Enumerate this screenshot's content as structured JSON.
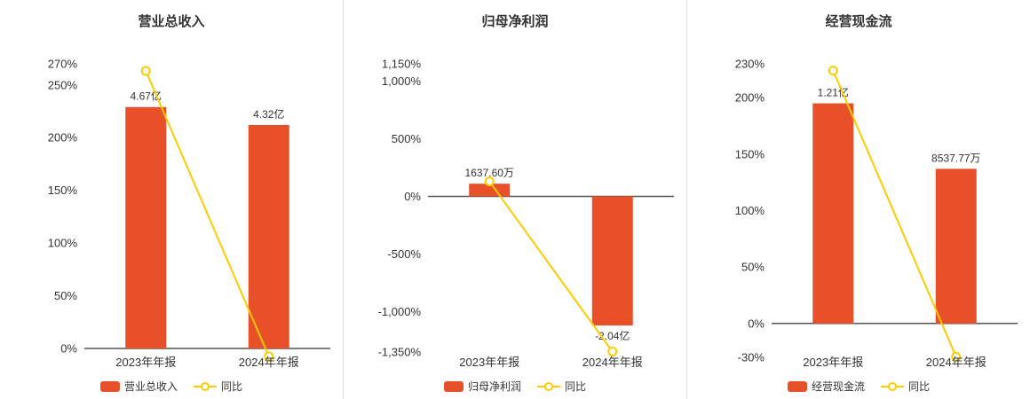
{
  "colors": {
    "bar": "#e8502a",
    "line": "#fccb00",
    "axis": "#555555",
    "text": "#333333",
    "divider": "#dddddd",
    "marker_fill": "#ffffff"
  },
  "chart_data": [
    {
      "type": "bar",
      "title": "营业总收入",
      "categories": [
        "2023年年报",
        "2024年年报"
      ],
      "bar_series": {
        "name": "营业总收入",
        "value_labels": [
          "4.67亿",
          "4.32亿"
        ],
        "axis_pct_values": [
          229,
          212
        ]
      },
      "line_series": {
        "name": "同比",
        "values_pct": [
          263.3,
          -7.49
        ]
      },
      "y_axis": {
        "min": 0,
        "max": 270,
        "ticks": [
          {
            "label": "270%",
            "value": 270
          },
          {
            "label": "250%",
            "value": 250
          },
          {
            "label": "200%",
            "value": 200
          },
          {
            "label": "150%",
            "value": 150
          },
          {
            "label": "100%",
            "value": 100
          },
          {
            "label": "50%",
            "value": 50
          },
          {
            "label": "0%",
            "value": 0
          }
        ]
      },
      "legend_position": "bottom",
      "grid": false
    },
    {
      "type": "bar",
      "title": "归母净利润",
      "categories": [
        "2023年年报",
        "2024年年报"
      ],
      "bar_series": {
        "name": "归母净利润",
        "value_labels": [
          "1637.60万",
          "-2.04亿"
        ],
        "axis_pct_values": [
          110,
          -1120
        ]
      },
      "line_series": {
        "name": "同比",
        "values_pct": [
          130,
          -1345.8
        ]
      },
      "y_axis": {
        "min": -1350,
        "max": 1150,
        "ticks": [
          {
            "label": "1,150%",
            "value": 1150
          },
          {
            "label": "1,000%",
            "value": 1000
          },
          {
            "label": "500%",
            "value": 500
          },
          {
            "label": "0%",
            "value": 0
          },
          {
            "label": "-500%",
            "value": -500
          },
          {
            "label": "-1,000%",
            "value": -1000
          },
          {
            "label": "-1,350%",
            "value": -1350
          }
        ]
      },
      "legend_position": "bottom",
      "grid": false
    },
    {
      "type": "bar",
      "title": "经营现金流",
      "categories": [
        "2023年年报",
        "2024年年报"
      ],
      "bar_series": {
        "name": "经营现金流",
        "value_labels": [
          "1.21亿",
          "8537.77万"
        ],
        "axis_pct_values": [
          195,
          137
        ]
      },
      "line_series": {
        "name": "同比",
        "values_pct": [
          224,
          -29.4
        ]
      },
      "y_axis": {
        "min": -30,
        "max": 230,
        "ticks": [
          {
            "label": "230%",
            "value": 230
          },
          {
            "label": "200%",
            "value": 200
          },
          {
            "label": "150%",
            "value": 150
          },
          {
            "label": "100%",
            "value": 100
          },
          {
            "label": "50%",
            "value": 50
          },
          {
            "label": "0%",
            "value": 0
          },
          {
            "label": "-30%",
            "value": -30
          }
        ]
      },
      "legend_position": "bottom",
      "grid": false
    }
  ]
}
